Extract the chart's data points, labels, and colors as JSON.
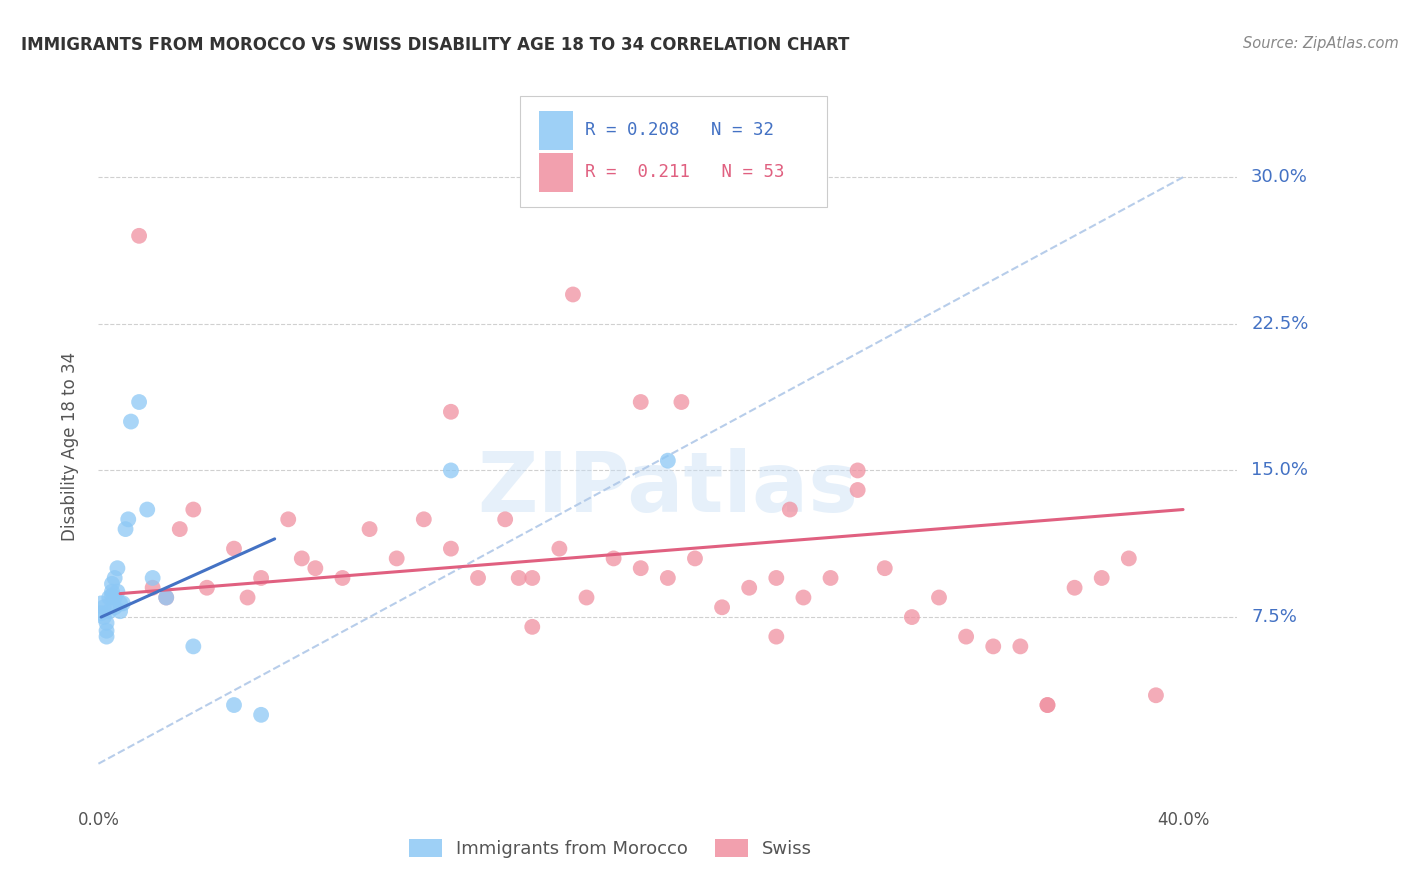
{
  "title": "IMMIGRANTS FROM MOROCCO VS SWISS DISABILITY AGE 18 TO 34 CORRELATION CHART",
  "source": "Source: ZipAtlas.com",
  "ylabel": "Disability Age 18 to 34",
  "xlim": [
    0.0,
    0.42
  ],
  "ylim": [
    -0.02,
    0.345
  ],
  "xtick_vals": [
    0.0,
    0.05,
    0.1,
    0.15,
    0.2,
    0.25,
    0.3,
    0.35,
    0.4
  ],
  "xtick_labels": [
    "0.0%",
    "",
    "",
    "",
    "",
    "",
    "",
    "",
    "40.0%"
  ],
  "ytick_vals": [
    0.075,
    0.15,
    0.225,
    0.3
  ],
  "ytick_labels": [
    "7.5%",
    "15.0%",
    "22.5%",
    "30.0%"
  ],
  "morocco_color": "#8DC8F5",
  "swiss_color": "#F090A0",
  "morocco_line_color": "#4472C4",
  "swiss_line_color": "#E06080",
  "dash_line_color": "#B0C8E8",
  "watermark": "ZIPatlas",
  "background_color": "#ffffff",
  "grid_color": "#D0D0D0",
  "morocco_R": "0.208",
  "morocco_N": "32",
  "swiss_R": "0.211",
  "swiss_N": "53",
  "legend_text_color_blue": "#4472C4",
  "legend_text_color_pink": "#E06080",
  "ytick_color": "#4472C4",
  "xtick_color": "#555555",
  "morocco_x": [
    0.001,
    0.001,
    0.002,
    0.002,
    0.003,
    0.003,
    0.003,
    0.004,
    0.004,
    0.005,
    0.005,
    0.005,
    0.006,
    0.006,
    0.006,
    0.007,
    0.007,
    0.008,
    0.008,
    0.009,
    0.01,
    0.011,
    0.012,
    0.015,
    0.018,
    0.02,
    0.025,
    0.035,
    0.05,
    0.06,
    0.13,
    0.21
  ],
  "morocco_y": [
    0.082,
    0.077,
    0.08,
    0.075,
    0.072,
    0.068,
    0.065,
    0.085,
    0.078,
    0.088,
    0.092,
    0.086,
    0.095,
    0.085,
    0.08,
    0.1,
    0.088,
    0.082,
    0.078,
    0.082,
    0.12,
    0.125,
    0.175,
    0.185,
    0.13,
    0.095,
    0.085,
    0.06,
    0.03,
    0.025,
    0.15,
    0.155
  ],
  "swiss_x": [
    0.015,
    0.02,
    0.025,
    0.03,
    0.035,
    0.04,
    0.05,
    0.055,
    0.06,
    0.07,
    0.075,
    0.08,
    0.09,
    0.1,
    0.11,
    0.12,
    0.13,
    0.14,
    0.15,
    0.155,
    0.16,
    0.17,
    0.18,
    0.19,
    0.2,
    0.21,
    0.215,
    0.22,
    0.23,
    0.24,
    0.25,
    0.255,
    0.26,
    0.27,
    0.28,
    0.29,
    0.3,
    0.31,
    0.32,
    0.33,
    0.34,
    0.35,
    0.36,
    0.37,
    0.38,
    0.39,
    0.2,
    0.13,
    0.28,
    0.175,
    0.35,
    0.16,
    0.25
  ],
  "swiss_y": [
    0.27,
    0.09,
    0.085,
    0.12,
    0.13,
    0.09,
    0.11,
    0.085,
    0.095,
    0.125,
    0.105,
    0.1,
    0.095,
    0.12,
    0.105,
    0.125,
    0.11,
    0.095,
    0.125,
    0.095,
    0.095,
    0.11,
    0.085,
    0.105,
    0.1,
    0.095,
    0.185,
    0.105,
    0.08,
    0.09,
    0.095,
    0.13,
    0.085,
    0.095,
    0.14,
    0.1,
    0.075,
    0.085,
    0.065,
    0.06,
    0.06,
    0.03,
    0.09,
    0.095,
    0.105,
    0.035,
    0.185,
    0.18,
    0.15,
    0.24,
    0.03,
    0.07,
    0.065
  ]
}
